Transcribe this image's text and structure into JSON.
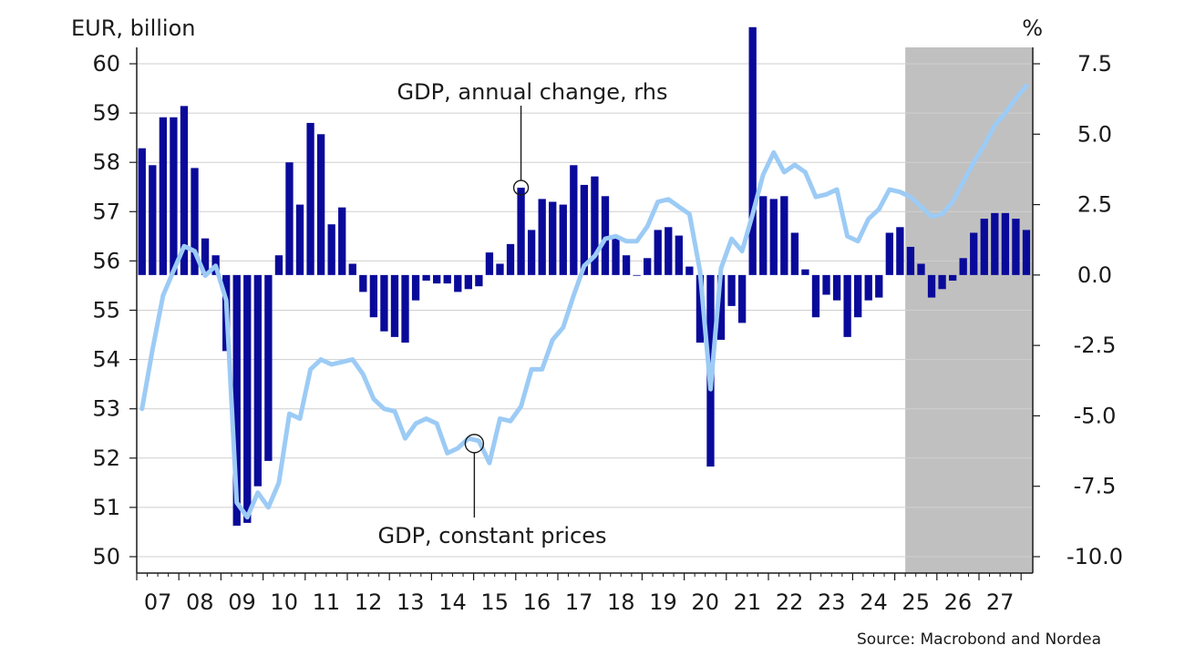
{
  "chart_data": {
    "type": "bar",
    "left_axis_label": "EUR, billion",
    "right_axis_label": "%",
    "left_ylim": [
      50,
      60
    ],
    "right_ylim": [
      -10,
      7.5
    ],
    "left_ticks": [
      "50",
      "51",
      "52",
      "53",
      "54",
      "55",
      "56",
      "57",
      "58",
      "59",
      "60"
    ],
    "right_ticks": [
      "-10.0",
      "-7.5",
      "-5.0",
      "-2.5",
      "0.0",
      "2.5",
      "5.0",
      "7.5"
    ],
    "x_labels": [
      "07",
      "08",
      "09",
      "10",
      "11",
      "12",
      "13",
      "14",
      "15",
      "16",
      "17",
      "18",
      "19",
      "20",
      "21",
      "22",
      "23",
      "24",
      "25",
      "26",
      "27"
    ],
    "forecast_start": "2025Q2",
    "grid": "horizontal",
    "colors": {
      "bars": "#0a0a9a",
      "line": "#9ccbf5",
      "forecast_band": "#c0c0c0",
      "grid": "#cfcfcf"
    },
    "series": [
      {
        "name": "GDP, annual change, rhs",
        "kind": "bar",
        "axis": "right",
        "start": "2007Q1",
        "values": [
          4.5,
          3.9,
          5.6,
          5.6,
          6.0,
          3.8,
          1.3,
          0.7,
          -2.7,
          -8.9,
          -8.8,
          -7.5,
          -6.6,
          0.7,
          4.0,
          2.5,
          5.4,
          5.0,
          1.8,
          2.4,
          0.4,
          -0.6,
          -1.5,
          -2.0,
          -2.2,
          -2.4,
          -0.9,
          -0.2,
          -0.3,
          -0.3,
          -0.6,
          -0.5,
          -0.4,
          0.8,
          0.4,
          1.1,
          3.1,
          1.6,
          2.7,
          2.6,
          2.5,
          3.9,
          3.2,
          3.5,
          2.8,
          1.4,
          0.7,
          0.0,
          0.6,
          1.6,
          1.7,
          1.4,
          0.3,
          -2.4,
          -6.8,
          -2.3,
          -1.1,
          -1.7,
          8.8,
          2.8,
          2.7,
          2.8,
          1.5,
          0.2,
          -1.5,
          -0.7,
          -0.9,
          -2.2,
          -1.5,
          -0.9,
          -0.8,
          1.5,
          1.7,
          1.0,
          0.4,
          -0.8,
          -0.5,
          -0.2,
          0.6,
          1.5,
          2.0,
          2.2,
          2.2,
          2.0,
          1.6
        ]
      },
      {
        "name": "GDP, constant prices",
        "kind": "line",
        "axis": "left",
        "start": "2007Q1",
        "values": [
          53.0,
          54.2,
          55.3,
          55.8,
          56.3,
          56.2,
          55.7,
          55.9,
          55.2,
          51.1,
          50.8,
          51.3,
          51.0,
          51.5,
          52.9,
          52.8,
          53.8,
          54.0,
          53.9,
          53.95,
          54.0,
          53.7,
          53.2,
          53.0,
          52.95,
          52.4,
          52.7,
          52.8,
          52.7,
          52.1,
          52.2,
          52.4,
          52.35,
          51.9,
          52.8,
          52.75,
          53.05,
          53.8,
          53.8,
          54.4,
          54.65,
          55.3,
          55.9,
          56.1,
          56.45,
          56.5,
          56.4,
          56.4,
          56.7,
          57.2,
          57.25,
          57.1,
          56.95,
          55.8,
          53.4,
          55.85,
          56.45,
          56.2,
          56.95,
          57.75,
          58.2,
          57.8,
          57.95,
          57.8,
          57.3,
          57.35,
          57.45,
          56.5,
          56.4,
          56.85,
          57.05,
          57.45,
          57.4,
          57.3,
          57.1,
          56.9,
          56.95,
          57.2,
          57.6,
          58.0,
          58.35,
          58.75,
          59.0,
          59.3,
          59.55
        ]
      }
    ],
    "annotations": [
      "GDP, annual change, rhs",
      "GDP, constant prices"
    ],
    "source": "Source: Macrobond and Nordea"
  }
}
